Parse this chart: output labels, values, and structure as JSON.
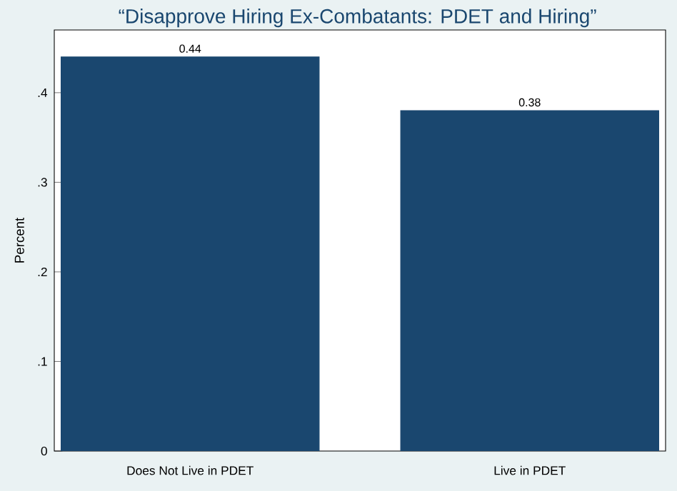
{
  "chart_data": {
    "type": "bar",
    "title": "“Disapprove Hiring Ex-Combatants: PDET and Hiring”",
    "ylabel": "Percent",
    "categories": [
      "Does Not Live in PDET",
      "Live in PDET"
    ],
    "values": [
      0.44,
      0.38
    ],
    "color": "#1a476f",
    "data_labels": true,
    "ylim": [
      0,
      0.47
    ],
    "yticks": [
      0,
      {
        "value": 0.1,
        "label": ".1"
      },
      {
        "value": 0.2,
        "label": ".2"
      },
      {
        "value": 0.3,
        "label": ".3"
      },
      {
        "value": 0.4,
        "label": ".4"
      }
    ],
    "grid": false
  }
}
